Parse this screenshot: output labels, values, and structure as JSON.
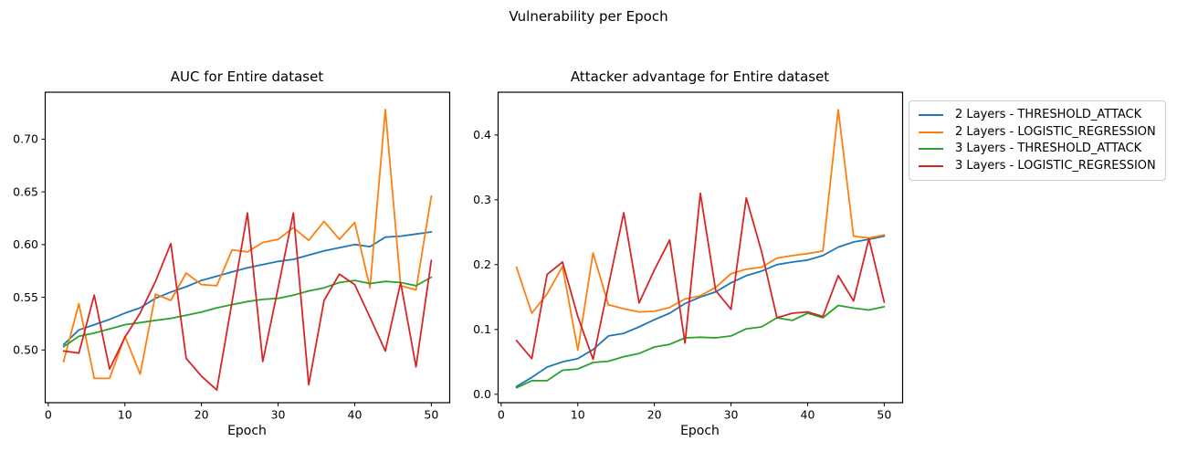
{
  "figure": {
    "title": "Vulnerability per Epoch",
    "background": "#ffffff"
  },
  "legend": {
    "items": [
      {
        "label": "2 Layers - THRESHOLD_ATTACK",
        "color": "#1f77b4"
      },
      {
        "label": "2 Layers - LOGISTIC_REGRESSION",
        "color": "#ff7f0e"
      },
      {
        "label": "3 Layers - THRESHOLD_ATTACK",
        "color": "#2ca02c"
      },
      {
        "label": "3 Layers - LOGISTIC_REGRESSION",
        "color": "#d62728"
      }
    ]
  },
  "chart_data": [
    {
      "type": "line",
      "title": "AUC for Entire dataset",
      "xlabel": "Epoch",
      "ylabel": "",
      "grid": false,
      "legend_position": "outside-right-of-figure",
      "xlim": [
        -0.4,
        52.4
      ],
      "ylim": [
        0.45,
        0.7445
      ],
      "xticks": {
        "values": [
          0,
          10,
          20,
          30,
          40,
          50
        ],
        "labels": [
          "0",
          "10",
          "20",
          "30",
          "40",
          "50"
        ]
      },
      "yticks": {
        "values": [
          0.5,
          0.55,
          0.6,
          0.65,
          0.7
        ],
        "labels": [
          "0.50",
          "0.55",
          "0.60",
          "0.65",
          "0.70"
        ]
      },
      "x": [
        2,
        4,
        6,
        8,
        10,
        12,
        14,
        16,
        18,
        20,
        22,
        24,
        26,
        28,
        30,
        32,
        34,
        36,
        38,
        40,
        42,
        44,
        46,
        48,
        50
      ],
      "series": [
        {
          "name": "2 Layers - THRESHOLD_ATTACK",
          "color": "#1f77b4",
          "values": [
            0.505,
            0.519,
            0.524,
            0.529,
            0.535,
            0.54,
            0.549,
            0.555,
            0.56,
            0.566,
            0.57,
            0.574,
            0.578,
            0.581,
            0.584,
            0.586,
            0.59,
            0.594,
            0.597,
            0.6,
            0.598,
            0.607,
            0.608,
            0.61,
            0.612
          ]
        },
        {
          "name": "2 Layers - LOGISTIC_REGRESSION",
          "color": "#ff7f0e",
          "values": [
            0.489,
            0.544,
            0.473,
            0.473,
            0.513,
            0.477,
            0.553,
            0.547,
            0.573,
            0.562,
            0.561,
            0.595,
            0.593,
            0.602,
            0.605,
            0.616,
            0.604,
            0.622,
            0.605,
            0.621,
            0.559,
            0.728,
            0.561,
            0.557,
            0.646
          ]
        },
        {
          "name": "3 Layers - THRESHOLD_ATTACK",
          "color": "#2ca02c",
          "values": [
            0.503,
            0.513,
            0.516,
            0.52,
            0.524,
            0.526,
            0.528,
            0.53,
            0.533,
            0.536,
            0.54,
            0.543,
            0.546,
            0.548,
            0.549,
            0.552,
            0.556,
            0.559,
            0.564,
            0.566,
            0.563,
            0.565,
            0.564,
            0.561,
            0.569
          ]
        },
        {
          "name": "3 Layers - LOGISTIC_REGRESSION",
          "color": "#d62728",
          "values": [
            0.499,
            0.497,
            0.552,
            0.482,
            0.512,
            0.535,
            0.565,
            0.601,
            0.492,
            0.475,
            0.462,
            0.546,
            0.63,
            0.489,
            0.559,
            0.63,
            0.467,
            0.547,
            0.572,
            0.562,
            0.531,
            0.499,
            0.564,
            0.484,
            0.585
          ]
        }
      ]
    },
    {
      "type": "line",
      "title": "Attacker advantage for Entire dataset",
      "xlabel": "Epoch",
      "ylabel": "",
      "grid": false,
      "legend_position": "outside-right-of-figure",
      "xlim": [
        -0.4,
        52.4
      ],
      "ylim": [
        -0.013,
        0.466
      ],
      "xticks": {
        "values": [
          0,
          10,
          20,
          30,
          40,
          50
        ],
        "labels": [
          "0",
          "10",
          "20",
          "30",
          "40",
          "50"
        ]
      },
      "yticks": {
        "values": [
          0.0,
          0.1,
          0.2,
          0.3,
          0.4
        ],
        "labels": [
          "0.0",
          "0.1",
          "0.2",
          "0.3",
          "0.4"
        ]
      },
      "x": [
        2,
        4,
        6,
        8,
        10,
        12,
        14,
        16,
        18,
        20,
        22,
        24,
        26,
        28,
        30,
        32,
        34,
        36,
        38,
        40,
        42,
        44,
        46,
        48,
        50
      ],
      "series": [
        {
          "name": "2 Layers - THRESHOLD_ATTACK",
          "color": "#1f77b4",
          "values": [
            0.012,
            0.026,
            0.042,
            0.05,
            0.055,
            0.069,
            0.09,
            0.094,
            0.104,
            0.115,
            0.125,
            0.14,
            0.15,
            0.158,
            0.172,
            0.183,
            0.19,
            0.2,
            0.204,
            0.207,
            0.214,
            0.227,
            0.235,
            0.239,
            0.244
          ]
        },
        {
          "name": "2 Layers - LOGISTIC_REGRESSION",
          "color": "#ff7f0e",
          "values": [
            0.196,
            0.125,
            0.155,
            0.197,
            0.068,
            0.218,
            0.138,
            0.132,
            0.127,
            0.128,
            0.134,
            0.147,
            0.152,
            0.165,
            0.186,
            0.193,
            0.196,
            0.21,
            0.214,
            0.217,
            0.221,
            0.439,
            0.244,
            0.241,
            0.246
          ]
        },
        {
          "name": "3 Layers - THRESHOLD_ATTACK",
          "color": "#2ca02c",
          "values": [
            0.01,
            0.021,
            0.021,
            0.037,
            0.039,
            0.049,
            0.051,
            0.058,
            0.063,
            0.073,
            0.077,
            0.087,
            0.088,
            0.087,
            0.09,
            0.101,
            0.104,
            0.118,
            0.114,
            0.125,
            0.118,
            0.137,
            0.133,
            0.13,
            0.135
          ]
        },
        {
          "name": "3 Layers - LOGISTIC_REGRESSION",
          "color": "#d62728",
          "values": [
            0.083,
            0.055,
            0.185,
            0.204,
            0.12,
            0.054,
            0.167,
            0.28,
            0.141,
            0.192,
            0.238,
            0.079,
            0.31,
            0.16,
            0.131,
            0.303,
            0.22,
            0.118,
            0.125,
            0.127,
            0.12,
            0.183,
            0.144,
            0.24,
            0.142
          ]
        }
      ]
    }
  ]
}
